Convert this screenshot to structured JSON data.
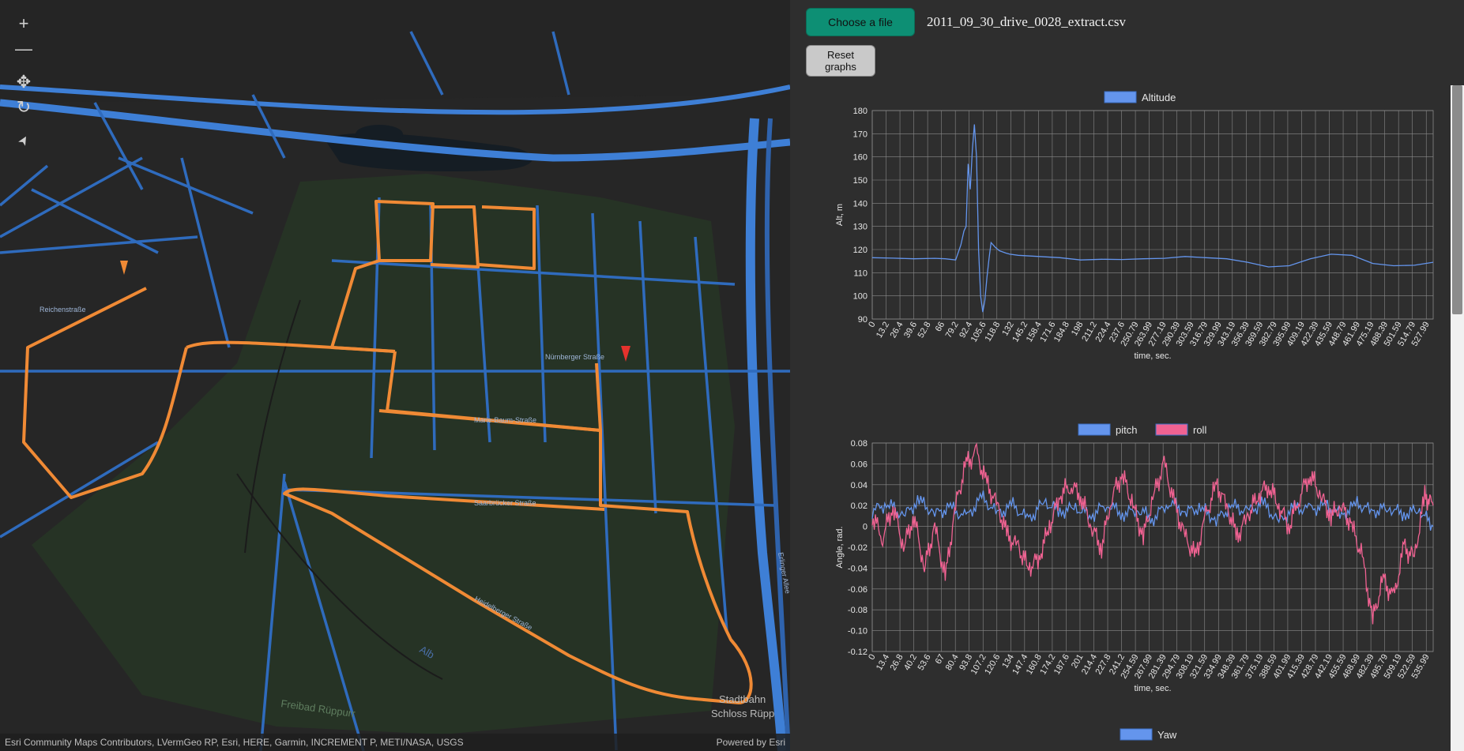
{
  "map": {
    "controls": [
      {
        "name": "zoom-in-button",
        "icon": "plus-icon",
        "glyph": "+"
      },
      {
        "name": "zoom-out-button",
        "icon": "minus-icon",
        "glyph": "—"
      },
      {
        "name": "pan-button",
        "icon": "move-icon",
        "glyph": "✥"
      },
      {
        "name": "rotate-button",
        "icon": "rotate-icon",
        "glyph": "↻"
      },
      {
        "name": "compass-button",
        "icon": "compass-icon",
        "glyph": "➤"
      }
    ],
    "street_labels": [
      "Nürnberger Straße",
      "Marie-Baum-Straße",
      "Saarbrücker Straße",
      "Heidelberger Straße",
      "Reichenstraße",
      "Erlinger Allee",
      "Freibad Rüppurr",
      "Alb",
      "Stadtbahn",
      "Schloss Rüpp"
    ],
    "attribution": "Esri Community Maps Contributors, LVermGeo RP, Esri, HERE, Garmin, INCREMENT P, METI/NASA, USGS",
    "powered_by": "Powered by Esri",
    "route_color": "#f08a35",
    "road_color": "#3e7fd6"
  },
  "panel": {
    "choose_file_label": "Choose a file",
    "file_name": "2011_09_30_drive_0028_extract.csv",
    "reset_label_line1": "Reset",
    "reset_label_line2": "graphs"
  },
  "chart_data": [
    {
      "type": "line",
      "legend": [
        "Altitude"
      ],
      "xlabel": "time, sec.",
      "ylabel": "Alt, m",
      "ylim": [
        90,
        180
      ],
      "yticks": [
        90,
        100,
        110,
        120,
        130,
        140,
        150,
        160,
        170,
        180
      ],
      "xticks": [
        "0",
        "13.2",
        "26.4",
        "39.6",
        "52.8",
        "66",
        "79.2",
        "92.4",
        "105.6",
        "118.8",
        "132",
        "145.2",
        "158.4",
        "171.6",
        "184.8",
        "198",
        "211.2",
        "224.4",
        "237.6",
        "250.79",
        "263.99",
        "277.19",
        "290.39",
        "303.59",
        "316.79",
        "329.99",
        "343.19",
        "356.39",
        "369.59",
        "382.79",
        "395.99",
        "409.19",
        "422.39",
        "435.59",
        "448.79",
        "461.99",
        "475.19",
        "488.39",
        "501.59",
        "514.79",
        "527.99"
      ],
      "xlim": [
        0,
        538
      ],
      "series": [
        {
          "name": "Altitude",
          "color": "#6495ed",
          "x": [
            0,
            20,
            40,
            60,
            70,
            80,
            85,
            88,
            90,
            92,
            94,
            96,
            98,
            100,
            102,
            104,
            106,
            108,
            110,
            112,
            114,
            118,
            122,
            128,
            132,
            140,
            160,
            180,
            200,
            220,
            240,
            260,
            280,
            300,
            320,
            340,
            360,
            380,
            400,
            420,
            440,
            460,
            480,
            500,
            520,
            538
          ],
          "y": [
            116.5,
            116.3,
            116.0,
            116.2,
            116.0,
            115.5,
            122,
            128,
            130,
            157,
            146,
            163,
            174,
            160,
            120,
            100,
            93,
            98,
            108,
            116,
            123,
            121,
            119.5,
            118.5,
            118,
            117.5,
            117.0,
            116.5,
            115.5,
            115.8,
            115.7,
            116.0,
            116.2,
            117.0,
            116.5,
            116.0,
            114.5,
            112.5,
            113.0,
            116.0,
            118.0,
            117.5,
            114.0,
            113.0,
            113.2,
            114.5
          ]
        }
      ]
    },
    {
      "type": "line",
      "legend": [
        "pitch",
        "roll"
      ],
      "xlabel": "time, sec.",
      "ylabel": "Angle, rad.",
      "ylim": [
        -0.12,
        0.08
      ],
      "yticks": [
        -0.12,
        -0.1,
        -0.08,
        -0.06,
        -0.04,
        -0.02,
        0,
        0.02,
        0.04,
        0.06,
        0.08
      ],
      "xticks": [
        "0",
        "13.4",
        "26.8",
        "40.2",
        "53.6",
        "67",
        "80.4",
        "93.8",
        "107.2",
        "120.6",
        "134",
        "147.4",
        "160.8",
        "174.2",
        "187.6",
        "201",
        "214.4",
        "227.8",
        "241.2",
        "254.59",
        "267.99",
        "281.39",
        "294.79",
        "308.19",
        "321.59",
        "334.99",
        "348.39",
        "361.79",
        "375.19",
        "388.59",
        "401.99",
        "415.39",
        "428.79",
        "442.19",
        "455.59",
        "468.99",
        "482.39",
        "495.79",
        "509.19",
        "522.59",
        "535.99"
      ],
      "xlim": [
        0,
        538
      ],
      "series": [
        {
          "name": "pitch",
          "color": "#6495ed",
          "x": [
            0,
            15,
            30,
            45,
            60,
            75,
            90,
            105,
            120,
            135,
            150,
            165,
            180,
            195,
            210,
            225,
            240,
            255,
            270,
            285,
            300,
            315,
            330,
            345,
            360,
            375,
            390,
            405,
            420,
            435,
            450,
            465,
            480,
            495,
            510,
            525,
            538
          ],
          "y": [
            0.015,
            0.022,
            0.01,
            0.025,
            0.012,
            0.018,
            0.008,
            0.028,
            0.012,
            0.02,
            0.006,
            0.024,
            0.014,
            0.018,
            0.01,
            0.022,
            0.012,
            0.016,
            0.008,
            0.024,
            0.014,
            0.018,
            0.006,
            0.02,
            0.014,
            0.022,
            0.004,
            0.018,
            0.016,
            0.02,
            0.01,
            0.022,
            0.014,
            0.018,
            0.012,
            0.016,
            0.0
          ]
        },
        {
          "name": "roll",
          "color": "#f06292",
          "x": [
            0,
            10,
            20,
            30,
            40,
            50,
            60,
            70,
            80,
            90,
            100,
            110,
            120,
            130,
            140,
            150,
            160,
            170,
            180,
            190,
            200,
            210,
            220,
            230,
            240,
            250,
            260,
            270,
            280,
            290,
            300,
            310,
            320,
            330,
            340,
            350,
            360,
            370,
            380,
            390,
            400,
            410,
            420,
            430,
            440,
            450,
            460,
            470,
            480,
            490,
            500,
            510,
            520,
            530,
            538
          ],
          "y": [
            0.01,
            -0.01,
            0.02,
            -0.02,
            0.01,
            -0.04,
            0.0,
            -0.05,
            0.02,
            0.06,
            0.07,
            0.04,
            0.02,
            -0.01,
            -0.02,
            -0.04,
            -0.03,
            0.0,
            0.03,
            0.04,
            0.03,
            0.0,
            -0.02,
            0.03,
            0.05,
            0.02,
            -0.01,
            0.03,
            0.06,
            0.02,
            -0.01,
            -0.03,
            0.01,
            0.04,
            0.02,
            -0.01,
            0.01,
            0.03,
            0.04,
            0.02,
            0.0,
            0.03,
            0.05,
            0.03,
            0.01,
            0.02,
            0.0,
            -0.03,
            -0.09,
            -0.05,
            -0.07,
            -0.02,
            -0.03,
            0.03,
            0.02
          ]
        }
      ]
    },
    {
      "type": "line",
      "legend": [
        "Yaw"
      ],
      "series": [
        {
          "name": "Yaw",
          "color": "#6495ed"
        }
      ]
    }
  ]
}
